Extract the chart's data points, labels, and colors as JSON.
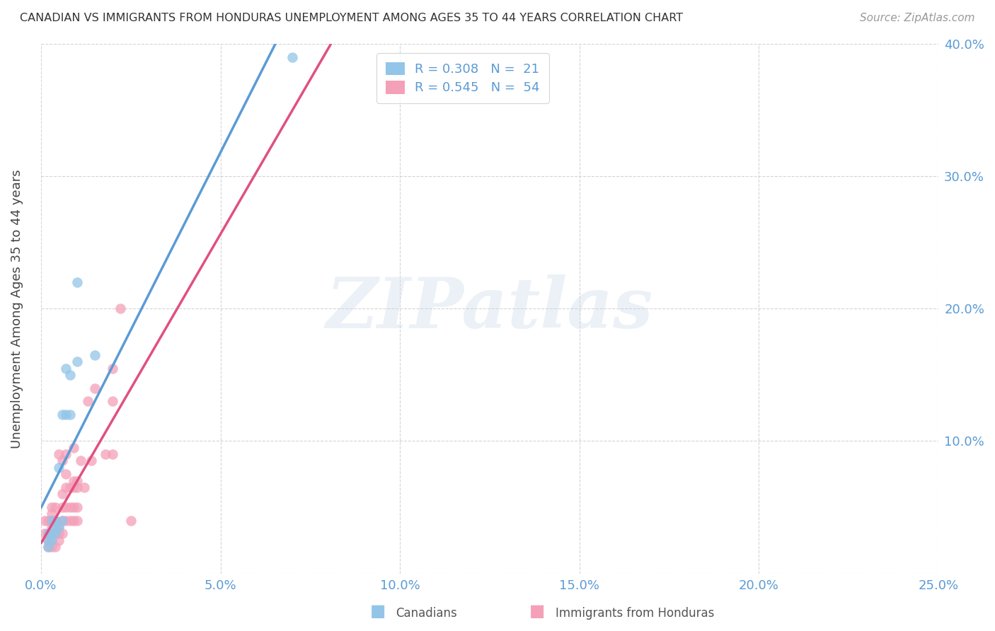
{
  "title": "CANADIAN VS IMMIGRANTS FROM HONDURAS UNEMPLOYMENT AMONG AGES 35 TO 44 YEARS CORRELATION CHART",
  "source": "Source: ZipAtlas.com",
  "ylabel": "Unemployment Among Ages 35 to 44 years",
  "xlim": [
    0.0,
    0.25
  ],
  "ylim": [
    0.0,
    0.4
  ],
  "legend_R_canadian": "R = 0.308",
  "legend_N_canadian": "N =  21",
  "legend_R_honduras": "R = 0.545",
  "legend_N_honduras": "N =  54",
  "legend_label_canadian": "Canadians",
  "legend_label_honduras": "Immigrants from Honduras",
  "color_canadian": "#92c5e8",
  "color_honduras": "#f4a0b8",
  "color_canadian_line": "#5b9bd5",
  "color_canadian_dash": "#a0bcd8",
  "color_honduras_line": "#e05080",
  "color_title": "#444444",
  "color_ticks": "#5b9bd5",
  "watermark_text": "ZIPatlas",
  "canadian_x": [
    0.002,
    0.002,
    0.002,
    0.003,
    0.003,
    0.003,
    0.004,
    0.004,
    0.004,
    0.005,
    0.005,
    0.006,
    0.006,
    0.007,
    0.007,
    0.008,
    0.008,
    0.01,
    0.01,
    0.015,
    0.07
  ],
  "canadian_y": [
    0.02,
    0.025,
    0.03,
    0.025,
    0.03,
    0.04,
    0.03,
    0.035,
    0.04,
    0.035,
    0.08,
    0.04,
    0.12,
    0.12,
    0.155,
    0.12,
    0.15,
    0.22,
    0.16,
    0.165,
    0.39
  ],
  "honduras_x": [
    0.001,
    0.001,
    0.002,
    0.002,
    0.002,
    0.002,
    0.003,
    0.003,
    0.003,
    0.003,
    0.003,
    0.003,
    0.003,
    0.004,
    0.004,
    0.004,
    0.004,
    0.005,
    0.005,
    0.005,
    0.005,
    0.006,
    0.006,
    0.006,
    0.006,
    0.006,
    0.007,
    0.007,
    0.007,
    0.007,
    0.007,
    0.008,
    0.008,
    0.008,
    0.009,
    0.009,
    0.009,
    0.009,
    0.009,
    0.01,
    0.01,
    0.01,
    0.01,
    0.011,
    0.012,
    0.013,
    0.014,
    0.015,
    0.018,
    0.02,
    0.02,
    0.02,
    0.022,
    0.025
  ],
  "honduras_y": [
    0.03,
    0.04,
    0.02,
    0.025,
    0.03,
    0.04,
    0.02,
    0.025,
    0.03,
    0.035,
    0.04,
    0.045,
    0.05,
    0.02,
    0.03,
    0.04,
    0.05,
    0.025,
    0.03,
    0.035,
    0.09,
    0.03,
    0.04,
    0.05,
    0.06,
    0.085,
    0.04,
    0.05,
    0.065,
    0.075,
    0.09,
    0.04,
    0.05,
    0.065,
    0.04,
    0.05,
    0.065,
    0.07,
    0.095,
    0.04,
    0.05,
    0.065,
    0.07,
    0.085,
    0.065,
    0.13,
    0.085,
    0.14,
    0.09,
    0.09,
    0.13,
    0.155,
    0.2,
    0.04
  ],
  "background_color": "#ffffff",
  "grid_color": "#d0d0d0"
}
